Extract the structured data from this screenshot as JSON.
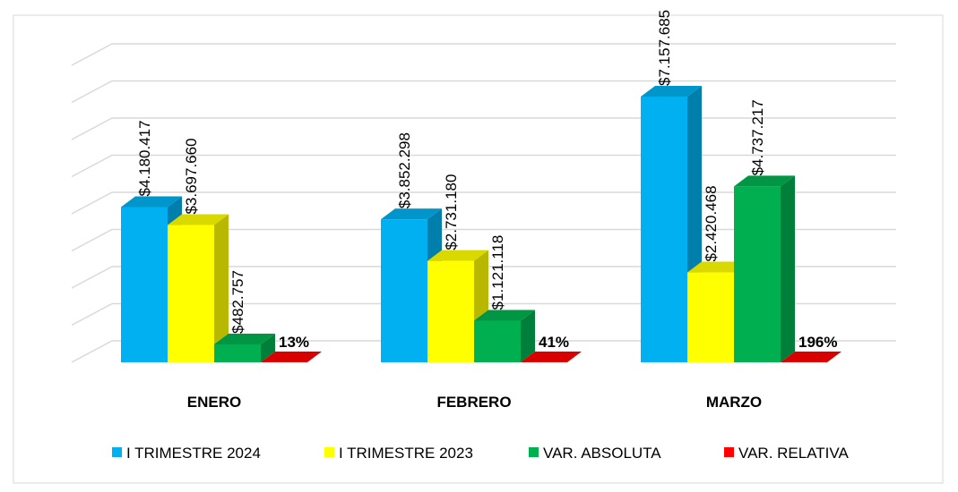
{
  "chart_data": {
    "type": "bar",
    "categories": [
      "ENERO",
      "FEBRERO",
      "MARZO"
    ],
    "series": [
      {
        "name": "I TRIMESTRE 2024",
        "color": "#00b0f0",
        "values": [
          4180417,
          3852298,
          7157685
        ],
        "value_labels": [
          "$4.180.417",
          "$3.852.298",
          "$7.157.685"
        ]
      },
      {
        "name": "I TRIMESTRE 2023",
        "color": "#ffff00",
        "values": [
          3697660,
          2731180,
          2420468
        ],
        "value_labels": [
          "$3.697.660",
          "$2.731.180",
          "$2.420.468"
        ]
      },
      {
        "name": "VAR. ABSOLUTA",
        "color": "#00b050",
        "values": [
          482757,
          1121118,
          4737217
        ],
        "value_labels": [
          "$482.757",
          "$1.121.118",
          "$4.737.217"
        ]
      },
      {
        "name": "VAR. RELATIVA",
        "color": "#ff0000",
        "values": [
          13,
          41,
          196
        ],
        "value_labels": [
          "13%",
          "41%",
          "196%"
        ]
      }
    ],
    "ylim": [
      0,
      8000000
    ],
    "yticks": [
      0,
      1000000,
      2000000,
      3000000,
      4000000,
      5000000,
      6000000,
      7000000,
      8000000
    ],
    "grid": true,
    "legend": "bottom"
  }
}
